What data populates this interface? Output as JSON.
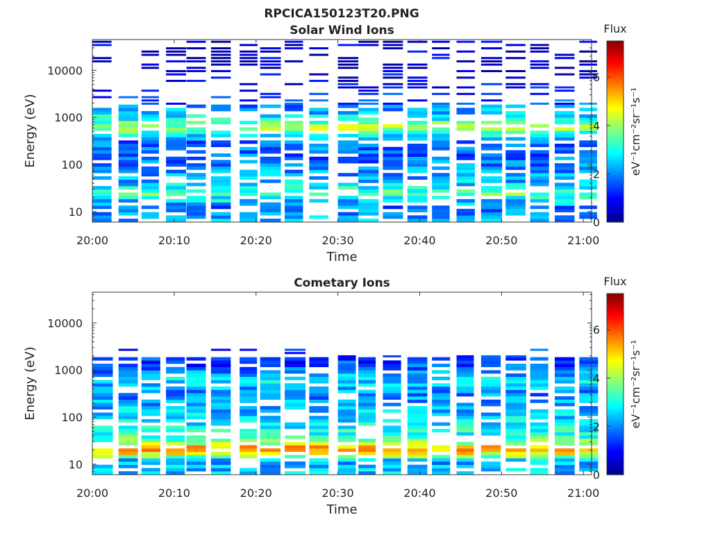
{
  "figure_title": "RPCICA150123T20.PNG",
  "colormap": [
    "#00008f",
    "#0000ff",
    "#007fff",
    "#00ffff",
    "#7fff7f",
    "#ffff00",
    "#ff7f00",
    "#ff0000",
    "#800000"
  ],
  "chart_data": [
    {
      "type": "heatmap",
      "title": "Solar Wind Ions",
      "xlabel": "Time",
      "ylabel": "Energy (eV)",
      "x_ticks": [
        "20:00",
        "20:10",
        "20:20",
        "20:30",
        "20:40",
        "20:50",
        "21:00"
      ],
      "x_range_minutes": [
        0,
        61
      ],
      "y_scale": "log",
      "y_ticks": [
        10,
        100,
        1000,
        10000
      ],
      "y_tick_labels": [
        "10",
        "100",
        "1000",
        "10000"
      ],
      "ylim": [
        6,
        45000
      ],
      "colorbar": {
        "label": "Flux",
        "unit": "eV⁻¹cm⁻²sr⁻¹s⁻¹",
        "range": [
          0,
          7.5
        ],
        "ticks": [
          "0",
          "2",
          "4",
          "6"
        ]
      },
      "columns_minutes": [
        0,
        3.2,
        6,
        9,
        11.5,
        14.5,
        18,
        20.5,
        23.5,
        26.5,
        30,
        32.5,
        35.5,
        38.5,
        41.5,
        44.5,
        47.5,
        50.5,
        53.5,
        56.5,
        59.5
      ],
      "flux_profile": [
        {
          "energy": 7,
          "flux": 2.3
        },
        {
          "energy": 12,
          "flux": 1.8
        },
        {
          "energy": 18,
          "flux": 2.6
        },
        {
          "energy": 24,
          "flux": 3.6
        },
        {
          "energy": 40,
          "flux": 2.4
        },
        {
          "energy": 80,
          "flux": 2.0
        },
        {
          "energy": 150,
          "flux": 1.7
        },
        {
          "energy": 300,
          "flux": 1.8
        },
        {
          "energy": 450,
          "flux": 3.0
        },
        {
          "energy": 600,
          "flux": 4.2
        },
        {
          "energy": 900,
          "flux": 3.0
        },
        {
          "energy": 1400,
          "flux": 2.2
        },
        {
          "energy": 2200,
          "flux": 1.4
        },
        {
          "energy": 5000,
          "flux": 0.8
        },
        {
          "energy": 15000,
          "flux": 0.6
        },
        {
          "energy": 35000,
          "flux": 0.5
        }
      ]
    },
    {
      "type": "heatmap",
      "title": "Cometary Ions",
      "xlabel": "Time",
      "ylabel": "Energy (eV)",
      "x_ticks": [
        "20:00",
        "20:10",
        "20:20",
        "20:30",
        "20:40",
        "20:50",
        "21:00"
      ],
      "x_range_minutes": [
        0,
        61
      ],
      "y_scale": "log",
      "y_ticks": [
        10,
        100,
        1000,
        10000
      ],
      "y_tick_labels": [
        "10",
        "100",
        "1000",
        "10000"
      ],
      "ylim": [
        6,
        45000
      ],
      "colorbar": {
        "label": "Flux",
        "unit": "eV⁻¹cm⁻²sr⁻¹s⁻¹",
        "range": [
          0,
          7.5
        ],
        "ticks": [
          "0",
          "2",
          "4",
          "6"
        ]
      },
      "columns_minutes": [
        0,
        3.2,
        6,
        9,
        11.5,
        14.5,
        18,
        20.5,
        23.5,
        26.5,
        30,
        32.5,
        35.5,
        38.5,
        41.5,
        44.5,
        47.5,
        50.5,
        53.5,
        56.5,
        59.5
      ],
      "flux_profile": [
        {
          "energy": 7,
          "flux": 2.4
        },
        {
          "energy": 12,
          "flux": 2.2
        },
        {
          "energy": 16,
          "flux": 4.5
        },
        {
          "energy": 22,
          "flux": 5.6
        },
        {
          "energy": 28,
          "flux": 3.8
        },
        {
          "energy": 45,
          "flux": 3.0
        },
        {
          "energy": 80,
          "flux": 2.6
        },
        {
          "energy": 150,
          "flux": 2.3
        },
        {
          "energy": 300,
          "flux": 1.9
        },
        {
          "energy": 600,
          "flux": 2.6
        },
        {
          "energy": 1200,
          "flux": 1.5
        },
        {
          "energy": 2200,
          "flux": 1.2
        }
      ]
    }
  ]
}
